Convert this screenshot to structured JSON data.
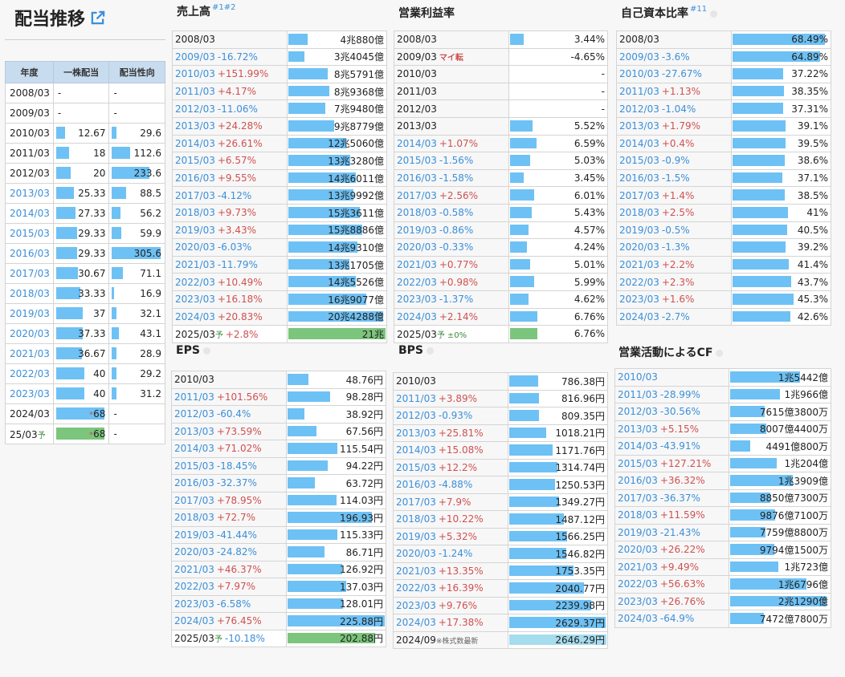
{
  "page": {
    "title": "配当推移",
    "link_icon": "external-link-icon"
  },
  "dividend": {
    "headers": [
      "年度",
      "一株配当",
      "配当性向"
    ],
    "rows": [
      {
        "year": "2008/03",
        "link": false,
        "dps": "-",
        "dps_v": 0,
        "dps_ast": "",
        "payout": "-",
        "payout_v": 0
      },
      {
        "year": "2009/03",
        "link": false,
        "dps": "-",
        "dps_v": 0,
        "dps_ast": "",
        "payout": "-",
        "payout_v": 0
      },
      {
        "year": "2010/03",
        "link": false,
        "dps": "12.67",
        "dps_v": 12.67,
        "dps_ast": "",
        "payout": "29.6",
        "payout_v": 29.6
      },
      {
        "year": "2011/03",
        "link": false,
        "dps": "18",
        "dps_v": 18,
        "dps_ast": "",
        "payout": "112.6",
        "payout_v": 112.6
      },
      {
        "year": "2012/03",
        "link": false,
        "dps": "20",
        "dps_v": 20,
        "dps_ast": "",
        "payout": "233.6",
        "payout_v": 233.6
      },
      {
        "year": "2013/03",
        "link": true,
        "dps": "25.33",
        "dps_v": 25.33,
        "dps_ast": "",
        "payout": "88.5",
        "payout_v": 88.5
      },
      {
        "year": "2014/03",
        "link": true,
        "dps": "27.33",
        "dps_v": 27.33,
        "dps_ast": "",
        "payout": "56.2",
        "payout_v": 56.2
      },
      {
        "year": "2015/03",
        "link": true,
        "dps": "29.33",
        "dps_v": 29.33,
        "dps_ast": "",
        "payout": "59.9",
        "payout_v": 59.9
      },
      {
        "year": "2016/03",
        "link": true,
        "dps": "29.33",
        "dps_v": 29.33,
        "dps_ast": "",
        "payout": "305.6",
        "payout_v": 305.6
      },
      {
        "year": "2017/03",
        "link": true,
        "dps": "30.67",
        "dps_v": 30.67,
        "dps_ast": "",
        "payout": "71.1",
        "payout_v": 71.1
      },
      {
        "year": "2018/03",
        "link": true,
        "dps": "33.33",
        "dps_v": 33.33,
        "dps_ast": "",
        "payout": "16.9",
        "payout_v": 16.9
      },
      {
        "year": "2019/03",
        "link": true,
        "dps": "37",
        "dps_v": 37,
        "dps_ast": "",
        "payout": "32.1",
        "payout_v": 32.1
      },
      {
        "year": "2020/03",
        "link": true,
        "dps": "37.33",
        "dps_v": 37.33,
        "dps_ast": "",
        "payout": "43.1",
        "payout_v": 43.1
      },
      {
        "year": "2021/03",
        "link": true,
        "dps": "36.67",
        "dps_v": 36.67,
        "dps_ast": "",
        "payout": "28.9",
        "payout_v": 28.9
      },
      {
        "year": "2022/03",
        "link": true,
        "dps": "40",
        "dps_v": 40,
        "dps_ast": "",
        "payout": "29.2",
        "payout_v": 29.2
      },
      {
        "year": "2023/03",
        "link": true,
        "dps": "40",
        "dps_v": 40,
        "dps_ast": "",
        "payout": "31.2",
        "payout_v": 31.2
      },
      {
        "year": "2024/03",
        "link": false,
        "dps": "68",
        "dps_v": 68,
        "dps_ast": "*",
        "payout": "-",
        "payout_v": 0
      },
      {
        "year": "25/03",
        "yosou": "予",
        "link": false,
        "dps": "68",
        "dps_v": 68,
        "dps_ast": "*",
        "payout": "-",
        "payout_v": 0,
        "forecast": true
      }
    ]
  },
  "panels": [
    {
      "id": "sales",
      "title": "売上高",
      "sup": "#1#2",
      "info": false,
      "max": 21,
      "rows": [
        {
          "year": "2008/03",
          "chg": "",
          "dir": "",
          "val": "4兆880億",
          "v": 4.088
        },
        {
          "year": "2009/03",
          "chg": "-16.72%",
          "dir": "dn",
          "val": "3兆4045億",
          "v": 3.4045
        },
        {
          "year": "2010/03",
          "chg": "+151.99%",
          "dir": "up",
          "val": "8兆5791億",
          "v": 8.5791
        },
        {
          "year": "2011/03",
          "chg": "+4.17%",
          "dir": "up",
          "val": "8兆9368億",
          "v": 8.9368
        },
        {
          "year": "2012/03",
          "chg": "-11.06%",
          "dir": "dn",
          "val": "7兆9480億",
          "v": 7.948
        },
        {
          "year": "2013/03",
          "chg": "+24.28%",
          "dir": "up",
          "val": "9兆8779億",
          "v": 9.8779
        },
        {
          "year": "2014/03",
          "chg": "+26.61%",
          "dir": "up",
          "val": "12兆5060億",
          "v": 12.506
        },
        {
          "year": "2015/03",
          "chg": "+6.57%",
          "dir": "up",
          "val": "13兆3280億",
          "v": 13.328
        },
        {
          "year": "2016/03",
          "chg": "+9.55%",
          "dir": "up",
          "val": "14兆6011億",
          "v": 14.6011
        },
        {
          "year": "2017/03",
          "chg": "-4.12%",
          "dir": "dn",
          "val": "13兆9992億",
          "v": 13.9992
        },
        {
          "year": "2018/03",
          "chg": "+9.73%",
          "dir": "up",
          "val": "15兆3611億",
          "v": 15.3611
        },
        {
          "year": "2019/03",
          "chg": "+3.43%",
          "dir": "up",
          "val": "15兆8886億",
          "v": 15.8886
        },
        {
          "year": "2020/03",
          "chg": "-6.03%",
          "dir": "dn",
          "val": "14兆9310億",
          "v": 14.931
        },
        {
          "year": "2021/03",
          "chg": "-11.79%",
          "dir": "dn",
          "val": "13兆1705億",
          "v": 13.1705
        },
        {
          "year": "2022/03",
          "chg": "+10.49%",
          "dir": "up",
          "val": "14兆5526億",
          "v": 14.5526
        },
        {
          "year": "2023/03",
          "chg": "+16.18%",
          "dir": "up",
          "val": "16兆9077億",
          "v": 16.9077
        },
        {
          "year": "2024/03",
          "chg": "+20.83%",
          "dir": "up",
          "val": "20兆4288億",
          "v": 20.4288
        },
        {
          "year": "2025/03",
          "yosou": "予",
          "chg": "+2.8%",
          "dir": "up",
          "val": "21兆",
          "v": 21,
          "forecast": true
        }
      ]
    },
    {
      "id": "opmargin",
      "title": "営業利益率",
      "sup": "",
      "info": false,
      "max": 24,
      "rows": [
        {
          "year": "2008/03",
          "chg": "",
          "dir": "",
          "val": "3.44%",
          "v": 3.44
        },
        {
          "year": "2009/03",
          "chg": "マイ転",
          "dir": "mai",
          "val": "-4.65%",
          "v": 0
        },
        {
          "year": "2010/03",
          "chg": "",
          "dir": "",
          "val": "-",
          "v": 0
        },
        {
          "year": "2011/03",
          "chg": "",
          "dir": "",
          "val": "-",
          "v": 0
        },
        {
          "year": "2012/03",
          "chg": "",
          "dir": "",
          "val": "-",
          "v": 0
        },
        {
          "year": "2013/03",
          "chg": "",
          "dir": "",
          "val": "5.52%",
          "v": 5.52
        },
        {
          "year": "2014/03",
          "chg": "+1.07%",
          "dir": "up",
          "val": "6.59%",
          "v": 6.59
        },
        {
          "year": "2015/03",
          "chg": "-1.56%",
          "dir": "dn",
          "val": "5.03%",
          "v": 5.03
        },
        {
          "year": "2016/03",
          "chg": "-1.58%",
          "dir": "dn",
          "val": "3.45%",
          "v": 3.45
        },
        {
          "year": "2017/03",
          "chg": "+2.56%",
          "dir": "up",
          "val": "6.01%",
          "v": 6.01
        },
        {
          "year": "2018/03",
          "chg": "-0.58%",
          "dir": "dn",
          "val": "5.43%",
          "v": 5.43
        },
        {
          "year": "2019/03",
          "chg": "-0.86%",
          "dir": "dn",
          "val": "4.57%",
          "v": 4.57
        },
        {
          "year": "2020/03",
          "chg": "-0.33%",
          "dir": "dn",
          "val": "4.24%",
          "v": 4.24
        },
        {
          "year": "2021/03",
          "chg": "+0.77%",
          "dir": "up",
          "val": "5.01%",
          "v": 5.01
        },
        {
          "year": "2022/03",
          "chg": "+0.98%",
          "dir": "up",
          "val": "5.99%",
          "v": 5.99
        },
        {
          "year": "2023/03",
          "chg": "-1.37%",
          "dir": "dn",
          "val": "4.62%",
          "v": 4.62
        },
        {
          "year": "2024/03",
          "chg": "+2.14%",
          "dir": "up",
          "val": "6.76%",
          "v": 6.76
        },
        {
          "year": "2025/03",
          "yosou": "予",
          "chg": "±0%",
          "dir": "st",
          "val": "6.76%",
          "v": 6.76,
          "forecast": true
        }
      ]
    },
    {
      "id": "equity",
      "title": "自己資本比率",
      "sup": "#11",
      "info": true,
      "max": 72,
      "rows": [
        {
          "year": "2008/03",
          "chg": "",
          "dir": "",
          "val": "68.49%",
          "v": 68.49
        },
        {
          "year": "2009/03",
          "chg": "-3.6%",
          "dir": "dn",
          "val": "64.89%",
          "v": 64.89
        },
        {
          "year": "2010/03",
          "chg": "-27.67%",
          "dir": "dn",
          "val": "37.22%",
          "v": 37.22
        },
        {
          "year": "2011/03",
          "chg": "+1.13%",
          "dir": "up",
          "val": "38.35%",
          "v": 38.35
        },
        {
          "year": "2012/03",
          "chg": "-1.04%",
          "dir": "dn",
          "val": "37.31%",
          "v": 37.31
        },
        {
          "year": "2013/03",
          "chg": "+1.79%",
          "dir": "up",
          "val": "39.1%",
          "v": 39.1
        },
        {
          "year": "2014/03",
          "chg": "+0.4%",
          "dir": "up",
          "val": "39.5%",
          "v": 39.5
        },
        {
          "year": "2015/03",
          "chg": "-0.9%",
          "dir": "dn",
          "val": "38.6%",
          "v": 38.6
        },
        {
          "year": "2016/03",
          "chg": "-1.5%",
          "dir": "dn",
          "val": "37.1%",
          "v": 37.1
        },
        {
          "year": "2017/03",
          "chg": "+1.4%",
          "dir": "up",
          "val": "38.5%",
          "v": 38.5
        },
        {
          "year": "2018/03",
          "chg": "+2.5%",
          "dir": "up",
          "val": "41%",
          "v": 41
        },
        {
          "year": "2019/03",
          "chg": "-0.5%",
          "dir": "dn",
          "val": "40.5%",
          "v": 40.5
        },
        {
          "year": "2020/03",
          "chg": "-1.3%",
          "dir": "dn",
          "val": "39.2%",
          "v": 39.2
        },
        {
          "year": "2021/03",
          "chg": "+2.2%",
          "dir": "up",
          "val": "41.4%",
          "v": 41.4
        },
        {
          "year": "2022/03",
          "chg": "+2.3%",
          "dir": "up",
          "val": "43.7%",
          "v": 43.7
        },
        {
          "year": "2023/03",
          "chg": "+1.6%",
          "dir": "up",
          "val": "45.3%",
          "v": 45.3
        },
        {
          "year": "2024/03",
          "chg": "-2.7%",
          "dir": "dn",
          "val": "42.6%",
          "v": 42.6
        }
      ]
    },
    {
      "id": "eps",
      "title": "EPS",
      "sup": "",
      "info": true,
      "max": 226,
      "rows": [
        {
          "year": "2010/03",
          "chg": "",
          "dir": "",
          "val": "48.76円",
          "v": 48.76
        },
        {
          "year": "2011/03",
          "chg": "+101.56%",
          "dir": "up",
          "val": "98.28円",
          "v": 98.28
        },
        {
          "year": "2012/03",
          "chg": "-60.4%",
          "dir": "dn",
          "val": "38.92円",
          "v": 38.92
        },
        {
          "year": "2013/03",
          "chg": "+73.59%",
          "dir": "up",
          "val": "67.56円",
          "v": 67.56
        },
        {
          "year": "2014/03",
          "chg": "+71.02%",
          "dir": "up",
          "val": "115.54円",
          "v": 115.54
        },
        {
          "year": "2015/03",
          "chg": "-18.45%",
          "dir": "dn",
          "val": "94.22円",
          "v": 94.22
        },
        {
          "year": "2016/03",
          "chg": "-32.37%",
          "dir": "dn",
          "val": "63.72円",
          "v": 63.72
        },
        {
          "year": "2017/03",
          "chg": "+78.95%",
          "dir": "up",
          "val": "114.03円",
          "v": 114.03
        },
        {
          "year": "2018/03",
          "chg": "+72.7%",
          "dir": "up",
          "val": "196.93円",
          "v": 196.93
        },
        {
          "year": "2019/03",
          "chg": "-41.44%",
          "dir": "dn",
          "val": "115.33円",
          "v": 115.33
        },
        {
          "year": "2020/03",
          "chg": "-24.82%",
          "dir": "dn",
          "val": "86.71円",
          "v": 86.71
        },
        {
          "year": "2021/03",
          "chg": "+46.37%",
          "dir": "up",
          "val": "126.92円",
          "v": 126.92
        },
        {
          "year": "2022/03",
          "chg": "+7.97%",
          "dir": "up",
          "val": "137.03円",
          "v": 137.03
        },
        {
          "year": "2023/03",
          "chg": "-6.58%",
          "dir": "dn",
          "val": "128.01円",
          "v": 128.01
        },
        {
          "year": "2024/03",
          "chg": "+76.45%",
          "dir": "up",
          "val": "225.88円",
          "v": 225.88
        },
        {
          "year": "2025/03",
          "yosou": "予",
          "chg": "-10.18%",
          "dir": "dn",
          "val": "202.88円",
          "v": 202.88,
          "forecast": true
        }
      ]
    },
    {
      "id": "bps",
      "title": "BPS",
      "sup": "",
      "info": true,
      "max": 2650,
      "rows": [
        {
          "year": "2010/03",
          "chg": "",
          "dir": "",
          "val": "786.38円",
          "v": 786.38
        },
        {
          "year": "2011/03",
          "chg": "+3.89%",
          "dir": "up",
          "val": "816.96円",
          "v": 816.96
        },
        {
          "year": "2012/03",
          "chg": "-0.93%",
          "dir": "dn",
          "val": "809.35円",
          "v": 809.35
        },
        {
          "year": "2013/03",
          "chg": "+25.81%",
          "dir": "up",
          "val": "1018.21円",
          "v": 1018.21
        },
        {
          "year": "2014/03",
          "chg": "+15.08%",
          "dir": "up",
          "val": "1171.76円",
          "v": 1171.76
        },
        {
          "year": "2015/03",
          "chg": "+12.2%",
          "dir": "up",
          "val": "1314.74円",
          "v": 1314.74
        },
        {
          "year": "2016/03",
          "chg": "-4.88%",
          "dir": "dn",
          "val": "1250.53円",
          "v": 1250.53
        },
        {
          "year": "2017/03",
          "chg": "+7.9%",
          "dir": "up",
          "val": "1349.27円",
          "v": 1349.27
        },
        {
          "year": "2018/03",
          "chg": "+10.22%",
          "dir": "up",
          "val": "1487.12円",
          "v": 1487.12
        },
        {
          "year": "2019/03",
          "chg": "+5.32%",
          "dir": "up",
          "val": "1566.25円",
          "v": 1566.25
        },
        {
          "year": "2020/03",
          "chg": "-1.24%",
          "dir": "dn",
          "val": "1546.82円",
          "v": 1546.82
        },
        {
          "year": "2021/03",
          "chg": "+13.35%",
          "dir": "up",
          "val": "1753.35円",
          "v": 1753.35
        },
        {
          "year": "2022/03",
          "chg": "+16.39%",
          "dir": "up",
          "val": "2040.77円",
          "v": 2040.77
        },
        {
          "year": "2023/03",
          "chg": "+9.76%",
          "dir": "up",
          "val": "2239.98円",
          "v": 2239.98
        },
        {
          "year": "2024/03",
          "chg": "+17.38%",
          "dir": "up",
          "val": "2629.37円",
          "v": 2629.37
        },
        {
          "year": "2024/09",
          "note": "※株式数最新",
          "chg": "",
          "dir": "",
          "val": "2646.29円",
          "v": 2646.29,
          "latest": true
        }
      ]
    },
    {
      "id": "opcf",
      "title": "営業活動によるCF",
      "sup": "",
      "info": true,
      "max": 22000,
      "rows": [
        {
          "year": "2010/03",
          "link": true,
          "chg": "",
          "dir": "",
          "val": "1兆5442億",
          "v": 15442
        },
        {
          "year": "2011/03",
          "chg": "-28.99%",
          "dir": "dn",
          "val": "1兆966億",
          "v": 10966
        },
        {
          "year": "2012/03",
          "chg": "-30.56%",
          "dir": "dn",
          "val": "7615億3800万",
          "v": 7615
        },
        {
          "year": "2013/03",
          "chg": "+5.15%",
          "dir": "up",
          "val": "8007億4400万",
          "v": 8007
        },
        {
          "year": "2014/03",
          "chg": "-43.91%",
          "dir": "dn",
          "val": "4491億800万",
          "v": 4491
        },
        {
          "year": "2015/03",
          "chg": "+127.21%",
          "dir": "up",
          "val": "1兆204億",
          "v": 10204
        },
        {
          "year": "2016/03",
          "chg": "+36.32%",
          "dir": "up",
          "val": "1兆3909億",
          "v": 13909
        },
        {
          "year": "2017/03",
          "chg": "-36.37%",
          "dir": "dn",
          "val": "8850億7300万",
          "v": 8850
        },
        {
          "year": "2018/03",
          "chg": "+11.59%",
          "dir": "up",
          "val": "9876億7100万",
          "v": 9876
        },
        {
          "year": "2019/03",
          "chg": "-21.43%",
          "dir": "dn",
          "val": "7759億8800万",
          "v": 7759
        },
        {
          "year": "2020/03",
          "chg": "+26.22%",
          "dir": "up",
          "val": "9794億1500万",
          "v": 9794
        },
        {
          "year": "2021/03",
          "chg": "+9.49%",
          "dir": "up",
          "val": "1兆723億",
          "v": 10723
        },
        {
          "year": "2022/03",
          "chg": "+56.63%",
          "dir": "up",
          "val": "1兆6796億",
          "v": 16796
        },
        {
          "year": "2023/03",
          "chg": "+26.76%",
          "dir": "up",
          "val": "2兆1290億",
          "v": 21290
        },
        {
          "year": "2024/03",
          "chg": "-64.9%",
          "dir": "dn",
          "val": "7472億7800万",
          "v": 7472
        }
      ]
    }
  ]
}
